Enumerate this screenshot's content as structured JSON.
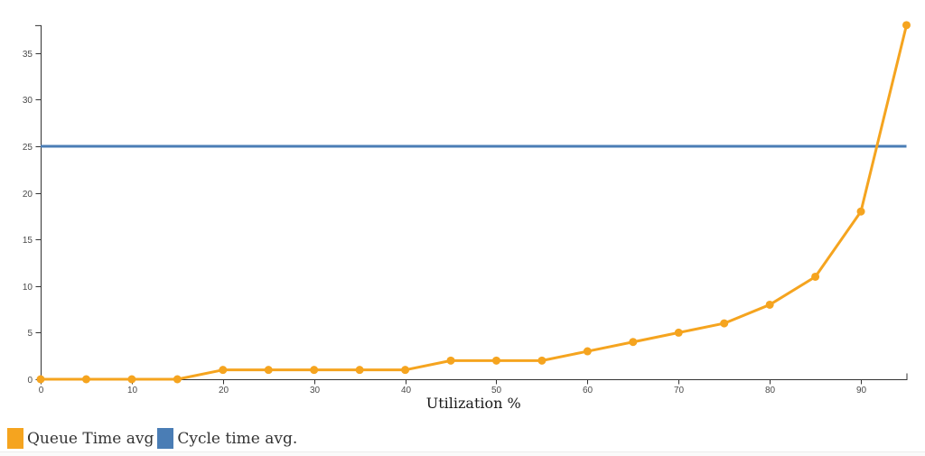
{
  "chart_data": {
    "type": "line",
    "title": "",
    "xlabel": "Utilization %",
    "ylabel": "",
    "x": [
      0,
      5,
      10,
      15,
      20,
      25,
      30,
      35,
      40,
      45,
      50,
      55,
      60,
      65,
      70,
      75,
      80,
      85,
      90,
      95
    ],
    "series": [
      {
        "name": "Queue Time avg",
        "color": "#F5A41F",
        "marker": "circle",
        "line_width": 3,
        "values": [
          0,
          0,
          0,
          0,
          1,
          1,
          1,
          1,
          1,
          2,
          2,
          2,
          3,
          4,
          5,
          6,
          8,
          11,
          18,
          38
        ]
      },
      {
        "name": "Cycle time avg.",
        "color": "#4A7DB5",
        "marker": "none",
        "line_width": 3,
        "values": [
          25,
          25,
          25,
          25,
          25,
          25,
          25,
          25,
          25,
          25,
          25,
          25,
          25,
          25,
          25,
          25,
          25,
          25,
          25,
          25
        ]
      }
    ],
    "xlim": [
      0,
      95
    ],
    "ylim": [
      0,
      38
    ],
    "x_ticks": [
      0,
      10,
      20,
      30,
      40,
      50,
      60,
      70,
      80,
      90
    ],
    "y_ticks": [
      0,
      5,
      10,
      15,
      20,
      25,
      30,
      35
    ],
    "grid": false,
    "legend_position": "bottom-left",
    "axis_color": "#333333",
    "tick_label_color": "#4a4a4a"
  },
  "legend": {
    "items": [
      {
        "label": "Queue Time avg",
        "color": "#F5A41F"
      },
      {
        "label": "Cycle time avg.",
        "color": "#4A7DB5"
      }
    ]
  }
}
